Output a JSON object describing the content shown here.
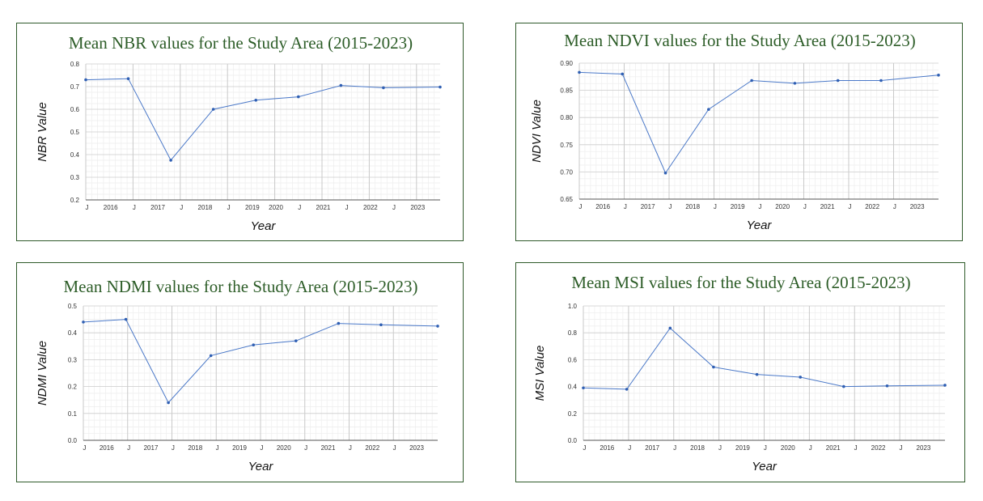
{
  "chart_data": [
    {
      "type": "line",
      "title": "Mean NBR values for the Study Area (2015-2023)",
      "xlabel": "Year",
      "ylabel": "NBR Value",
      "x_ticks": [
        "J",
        "2016",
        "J",
        "2017",
        "J",
        "2018",
        "J",
        "2019",
        "2020",
        "J",
        "2021",
        "J",
        "2022",
        "J",
        "2023"
      ],
      "y_ticks": [
        "0.2",
        "0.3",
        "0.4",
        "0.5",
        "0.6",
        "0.7",
        "0.8"
      ],
      "ylim": [
        0.2,
        0.8
      ],
      "xlim": [
        "2015-07",
        "2023-11"
      ],
      "grid": true,
      "color": "#4a78c8",
      "series": [
        {
          "x": [
            "2015-07",
            "2016-07",
            "2017-07",
            "2018-07",
            "2019-07",
            "2020-07",
            "2021-07",
            "2022-07",
            "2023-11"
          ],
          "values": [
            0.73,
            0.735,
            0.375,
            0.6,
            0.64,
            0.655,
            0.705,
            0.695,
            0.698
          ]
        }
      ]
    },
    {
      "type": "line",
      "title": "Mean NDVI values for the Study Area (2015-2023)",
      "xlabel": "Year",
      "ylabel": "NDVI Value",
      "x_ticks": [
        "J",
        "2016",
        "J",
        "2017",
        "J",
        "2018",
        "J",
        "2019",
        "J",
        "2020",
        "J",
        "2021",
        "J",
        "2022",
        "J",
        "2023"
      ],
      "y_ticks": [
        "0.65",
        "0.70",
        "0.75",
        "0.80",
        "0.85",
        "0.90"
      ],
      "ylim": [
        0.65,
        0.9
      ],
      "xlim": [
        "2015-07",
        "2023-11"
      ],
      "grid": true,
      "color": "#4a78c8",
      "series": [
        {
          "x": [
            "2015-07",
            "2016-07",
            "2017-07",
            "2018-07",
            "2019-07",
            "2020-07",
            "2021-07",
            "2022-07",
            "2023-11"
          ],
          "values": [
            0.883,
            0.88,
            0.698,
            0.815,
            0.868,
            0.863,
            0.868,
            0.868,
            0.878
          ]
        }
      ]
    },
    {
      "type": "line",
      "title": "Mean NDMI values for the Study Area (2015-2023)",
      "xlabel": "Year",
      "ylabel": "NDMI Value",
      "x_ticks": [
        "J",
        "2016",
        "J",
        "2017",
        "J",
        "2018",
        "J",
        "2019",
        "J",
        "2020",
        "J",
        "2021",
        "J",
        "2022",
        "J",
        "2023"
      ],
      "y_ticks": [
        "0.0",
        "0.1",
        "0.2",
        "0.3",
        "0.4",
        "0.5"
      ],
      "ylim": [
        0.0,
        0.5
      ],
      "xlim": [
        "2015-07",
        "2023-11"
      ],
      "grid": true,
      "color": "#4a78c8",
      "series": [
        {
          "x": [
            "2015-07",
            "2016-07",
            "2017-07",
            "2018-07",
            "2019-07",
            "2020-07",
            "2021-07",
            "2022-07",
            "2023-11"
          ],
          "values": [
            0.44,
            0.45,
            0.14,
            0.315,
            0.355,
            0.37,
            0.435,
            0.43,
            0.425
          ]
        }
      ]
    },
    {
      "type": "line",
      "title": "Mean MSI values for the Study Area (2015-2023)",
      "xlabel": "Year",
      "ylabel": "MSI Value",
      "x_ticks": [
        "J",
        "2016",
        "J",
        "2017",
        "J",
        "2018",
        "J",
        "2019",
        "J",
        "2020",
        "J",
        "2021",
        "J",
        "2022",
        "J",
        "2023"
      ],
      "y_ticks": [
        "0.0",
        "0.2",
        "0.4",
        "0.6",
        "0.8",
        "1.0"
      ],
      "ylim": [
        0.0,
        1.0
      ],
      "xlim": [
        "2015-07",
        "2023-11"
      ],
      "grid": true,
      "color": "#4a78c8",
      "series": [
        {
          "x": [
            "2015-07",
            "2016-07",
            "2017-07",
            "2018-07",
            "2019-07",
            "2020-07",
            "2021-07",
            "2022-07",
            "2023-11"
          ],
          "values": [
            0.39,
            0.38,
            0.835,
            0.545,
            0.49,
            0.47,
            0.4,
            0.405,
            0.41
          ]
        }
      ]
    }
  ]
}
